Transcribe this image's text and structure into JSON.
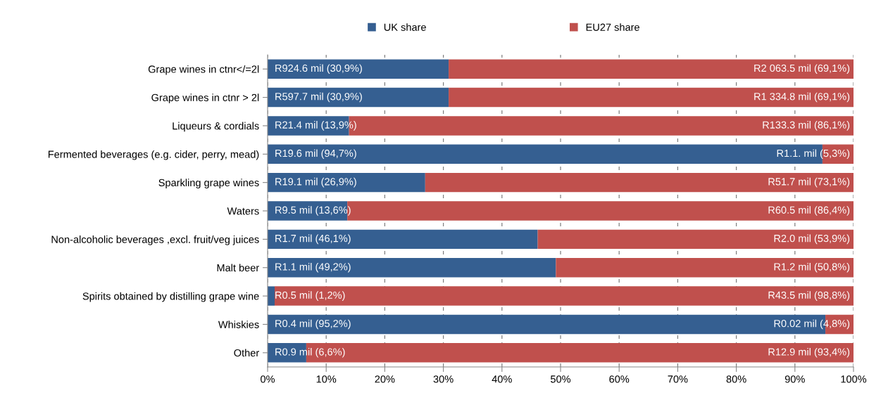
{
  "chart_data": {
    "type": "bar",
    "orientation": "horizontal",
    "stacked": true,
    "categories": [
      "Grape wines in ctnr</=2l",
      "Grape wines in ctnr > 2l",
      "Liqueurs & cordials",
      "Fermented beverages (e.g. cider, perry, mead)",
      "Sparkling grape wines",
      "Waters",
      "Non-alcoholic beverages ,excl. fruit/veg juices",
      "Malt beer",
      "Spirits obtained by distilling grape wine",
      "Whiskies",
      "Other"
    ],
    "series": [
      {
        "name": "UK share",
        "color": "#355f91",
        "values": [
          30.9,
          30.9,
          13.9,
          94.7,
          26.9,
          13.6,
          46.1,
          49.2,
          1.2,
          95.2,
          6.6
        ],
        "value_labels": [
          "R924.6 mil (30,9%)",
          "R597.7 mil (30,9%)",
          "R21.4 mil (13,9%)",
          "R19.6 mil (94,7%)",
          "R19.1 mil (26,9%)",
          "R9.5 mil (13,6%)",
          "R1.7 mil (46,1%)",
          "R1.1 mil (49,2%)",
          "R0.5 mil (1,2%)",
          "R0.4 mil (95,2%)",
          "R0.9 mil (6,6%)"
        ]
      },
      {
        "name": "EU27 share",
        "color": "#c0504d",
        "values": [
          69.1,
          69.1,
          86.1,
          5.3,
          73.1,
          86.4,
          53.9,
          50.8,
          98.8,
          4.8,
          93.4
        ],
        "value_labels": [
          "R2 063.5 mil (69,1%)",
          "R1 334.8 mil (69,1%)",
          "R133.3 mil (86,1%)",
          "R1.1. mil (5,3%)",
          "R51.7 mil (73,1%)",
          "R60.5 mil (86,4%)",
          "R2.0 mil (53,9%)",
          "R1.2 mil (50,8%)",
          "R43.5 mil (98,8%)",
          "R0.02 mil (4,8%)",
          "R12.9 mil (93,4%)"
        ]
      }
    ],
    "xlim": [
      0,
      100
    ],
    "xticks": [
      {
        "value": 0,
        "label": "0%"
      },
      {
        "value": 10,
        "label": "10%"
      },
      {
        "value": 20,
        "label": "20%"
      },
      {
        "value": 30,
        "label": "30%"
      },
      {
        "value": 40,
        "label": "40%"
      },
      {
        "value": 50,
        "label": "50%"
      },
      {
        "value": 60,
        "label": "60%"
      },
      {
        "value": 70,
        "label": "70%"
      },
      {
        "value": 80,
        "label": "80%"
      },
      {
        "value": 90,
        "label": "90%"
      },
      {
        "value": 100,
        "label": "100%"
      }
    ],
    "grid": "x",
    "legend": "top"
  }
}
